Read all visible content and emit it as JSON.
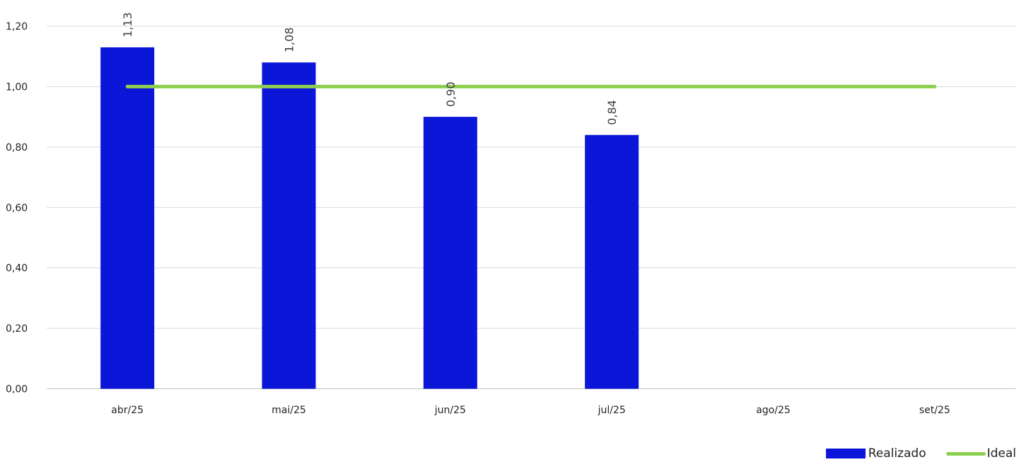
{
  "chart_data": {
    "type": "bar",
    "title": "",
    "xlabel": "",
    "ylabel": "",
    "categories": [
      "abr/25",
      "mai/25",
      "jun/25",
      "jul/25",
      "ago/25",
      "set/25"
    ],
    "ylim": [
      0,
      1.2
    ],
    "yticks": [
      "0,00",
      "0,20",
      "0,40",
      "0,60",
      "0,80",
      "1,00",
      "1,20"
    ],
    "ytick_values": [
      0,
      0.2,
      0.4,
      0.6,
      0.8,
      1.0,
      1.2
    ],
    "grid": true,
    "legend_position": "bottom-right",
    "series": [
      {
        "name": "Realizado",
        "type": "bar",
        "color": "#0c16d9",
        "values": [
          1.13,
          1.08,
          0.9,
          0.84,
          null,
          null
        ],
        "labels": [
          "1,13",
          "1,08",
          "0,90",
          "0,84",
          "",
          ""
        ]
      },
      {
        "name": "Ideal",
        "type": "line",
        "color": "#8ecf52",
        "values": [
          1.0,
          1.0,
          1.0,
          1.0,
          1.0,
          1.0
        ]
      }
    ]
  }
}
